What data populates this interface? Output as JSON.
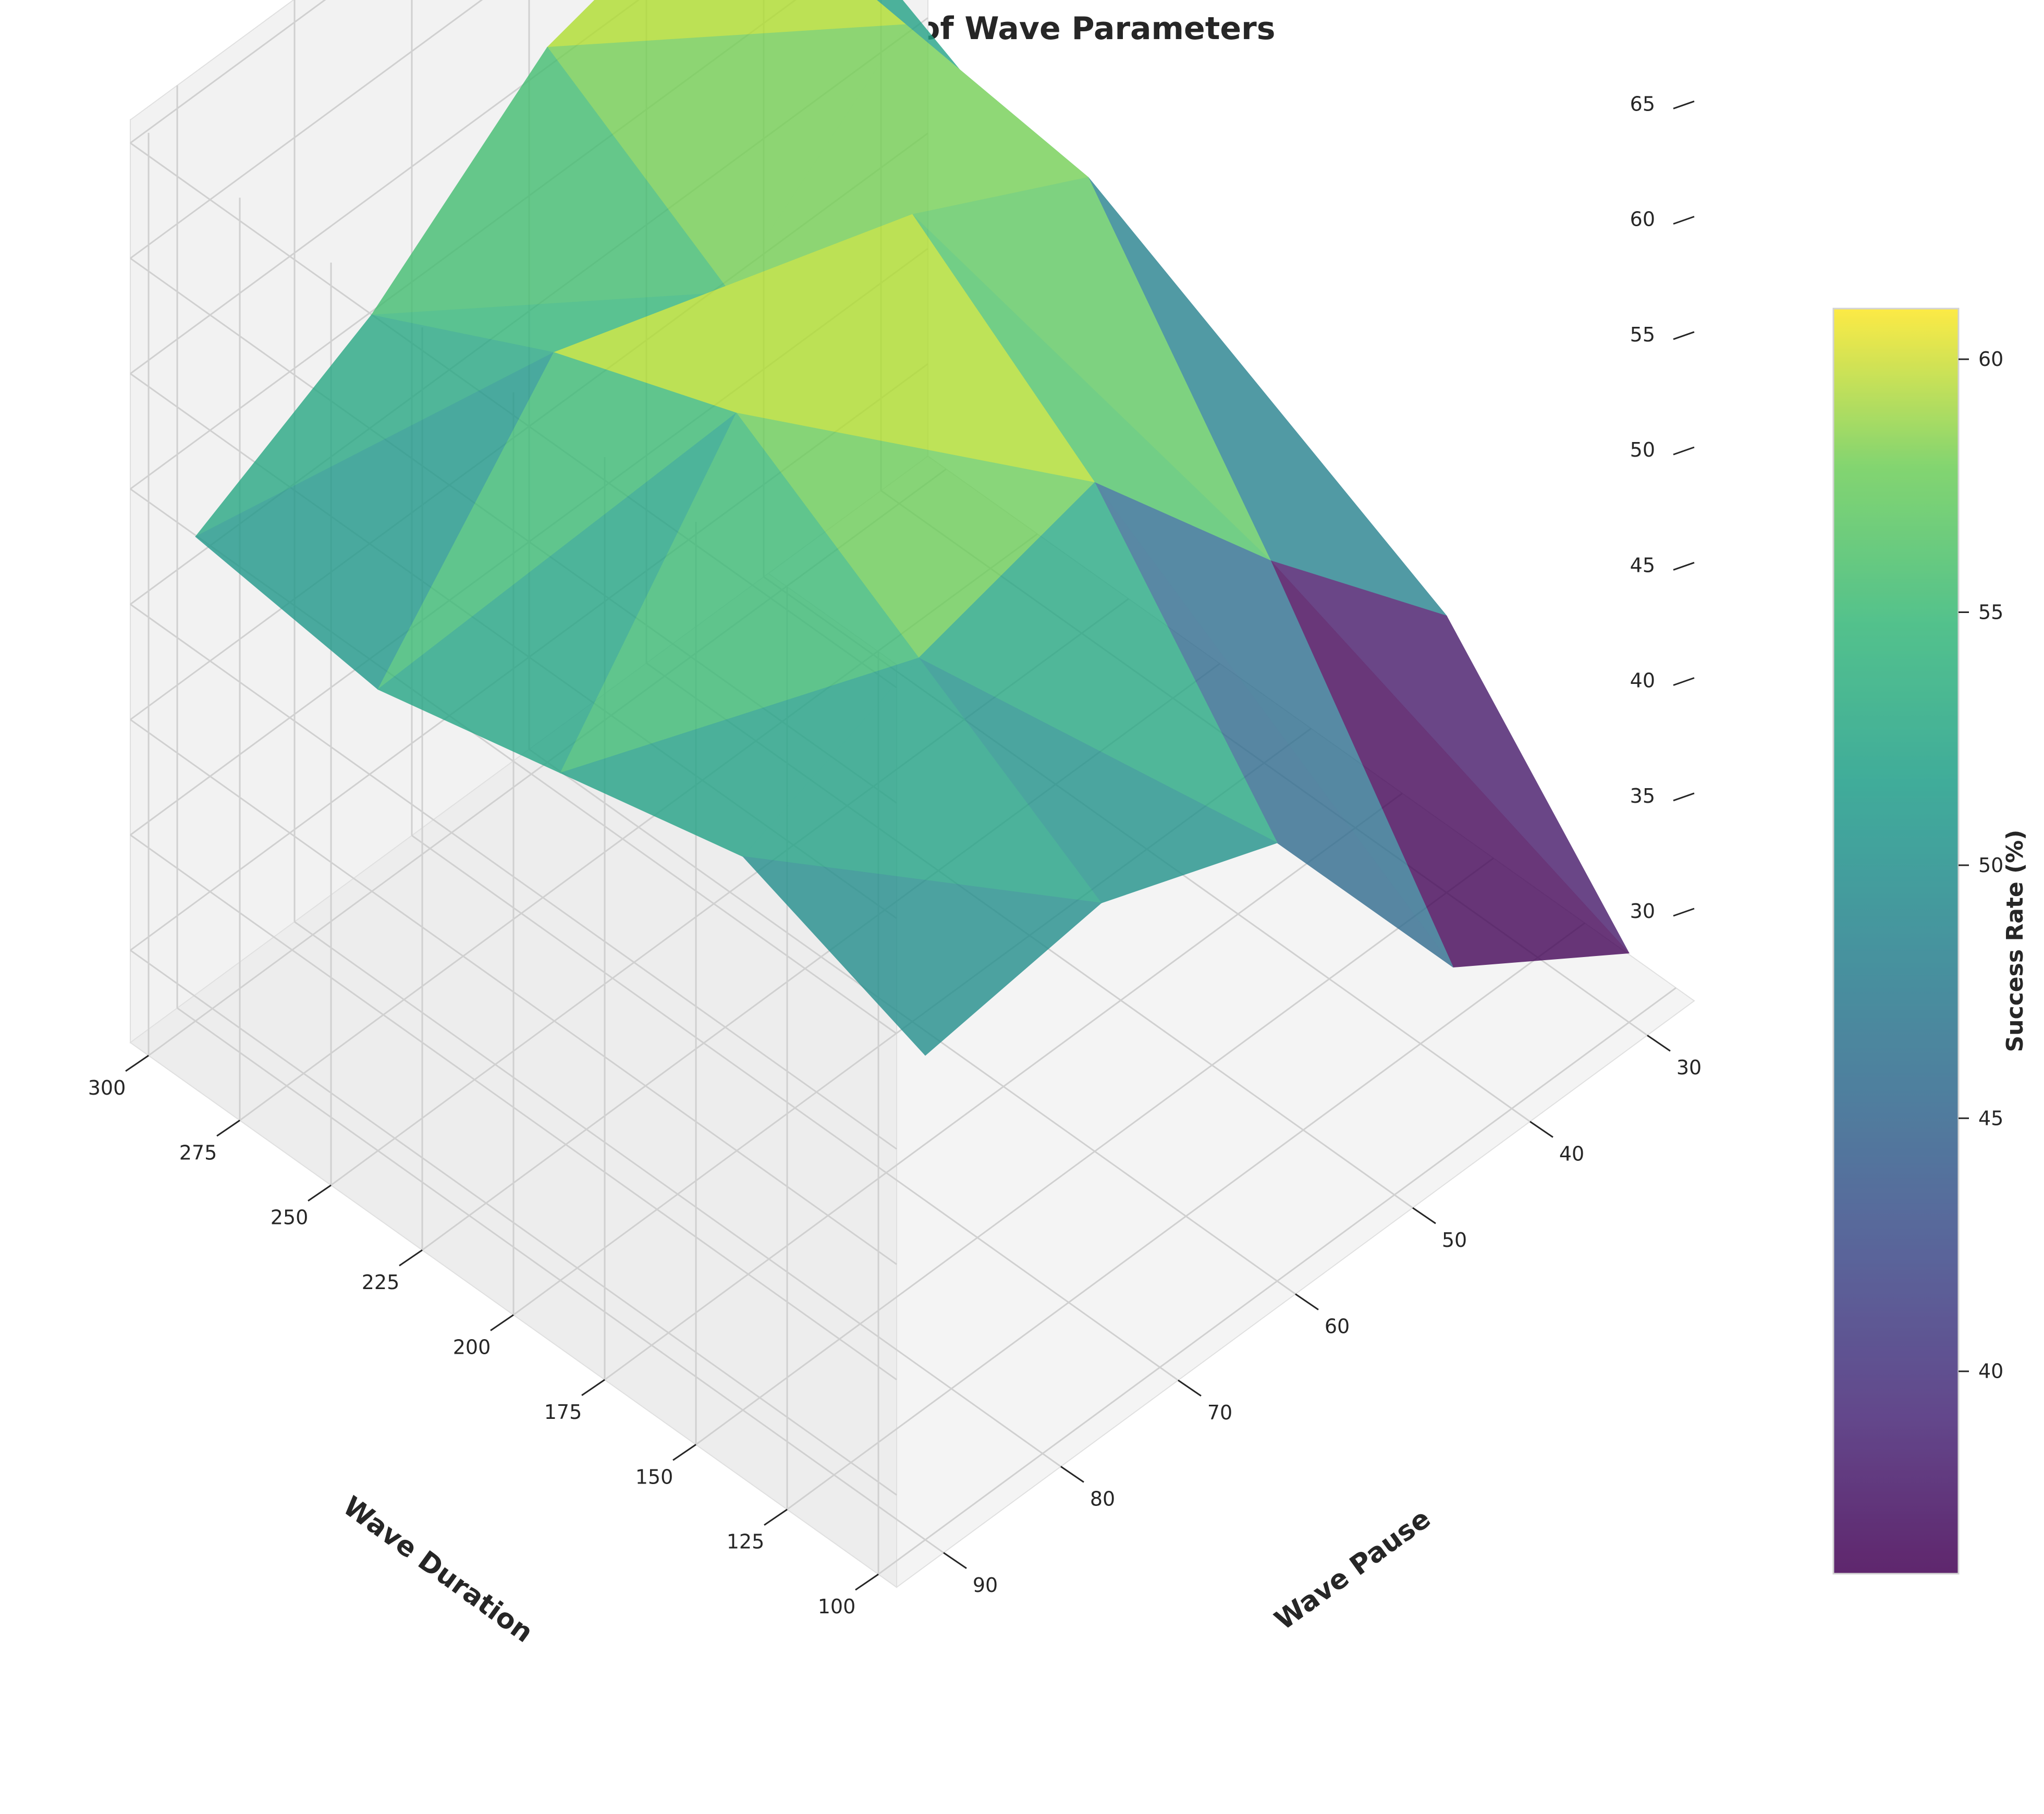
{
  "chart_data": {
    "type": "surface",
    "title": "Success Rate as a Function of Wave Parameters",
    "xlabel": "Wave Duration",
    "ylabel": "Wave Pause",
    "zlabel": "",
    "colorbar_label": "Success Rate (%)",
    "colormap": "viridis",
    "xlim": [
      95,
      305
    ],
    "ylim": [
      26,
      94
    ],
    "zlim": [
      26,
      66
    ],
    "xticks": [
      100,
      125,
      150,
      175,
      200,
      225,
      250,
      275,
      300
    ],
    "yticks": [
      30,
      40,
      50,
      60,
      70,
      80,
      90
    ],
    "zticks": [
      30,
      35,
      40,
      45,
      50,
      55,
      60,
      65
    ],
    "colorbar_range": [
      36,
      61
    ],
    "colorbar_ticks": [
      40,
      45,
      50,
      55,
      60
    ],
    "x": [
      100,
      150,
      200,
      250,
      300
    ],
    "y": [
      30,
      45,
      60,
      75,
      90
    ],
    "z": [
      [
        29,
        38,
        40,
        44,
        48
      ],
      [
        34,
        46,
        57,
        58,
        59
      ],
      [
        45,
        55,
        61,
        52,
        57
      ],
      [
        48,
        53,
        58,
        55,
        51
      ],
      [
        47,
        50,
        48,
        46,
        47
      ]
    ],
    "grid": true
  }
}
